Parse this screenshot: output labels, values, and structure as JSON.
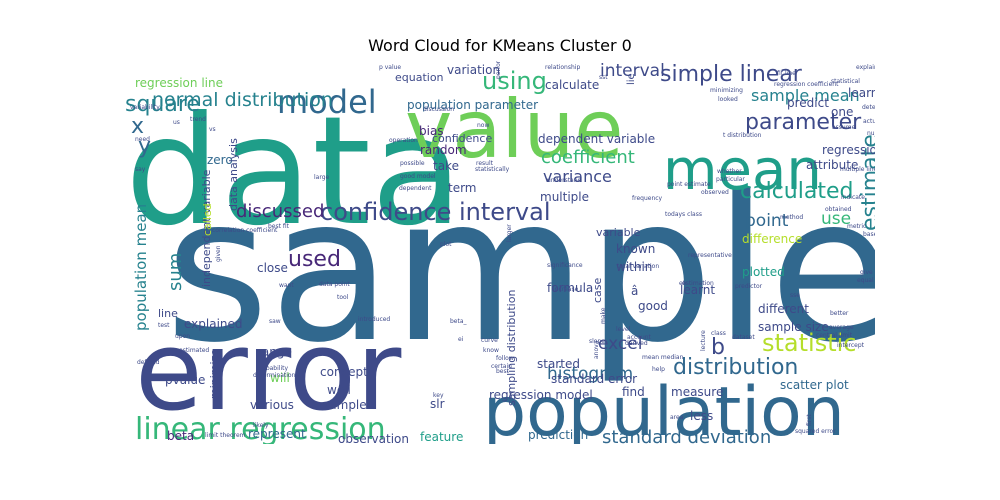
{
  "title": "Word Cloud for KMeans Cluster 0",
  "palette": [
    "#440154",
    "#482878",
    "#3e4a89",
    "#31688e",
    "#26828e",
    "#1f9e89",
    "#35b779",
    "#6ece58",
    "#b5de2b",
    "#fde725"
  ],
  "words": [
    {
      "text": "sample",
      "size": 10,
      "color": "#31688e"
    },
    {
      "text": "data",
      "size": 10,
      "color": "#1f9e89"
    },
    {
      "text": "value",
      "size": 9,
      "color": "#6ece58"
    },
    {
      "text": "error",
      "size": 9,
      "color": "#3e4a89"
    },
    {
      "text": "population",
      "size": 9,
      "color": "#31688e"
    },
    {
      "text": "mean",
      "size": 8,
      "color": "#1f9e89"
    },
    {
      "text": "confidence interval",
      "size": 6,
      "color": "#3e4a89"
    },
    {
      "text": "linear regression",
      "size": 6,
      "color": "#35b779"
    },
    {
      "text": "model",
      "size": 6,
      "color": "#31688e"
    },
    {
      "text": "simple linear",
      "size": 5,
      "color": "#3e4a89"
    },
    {
      "text": "parameter",
      "size": 5,
      "color": "#3e4a89"
    },
    {
      "text": "estimate",
      "size": 5,
      "color": "#26828e"
    },
    {
      "text": "statistic",
      "size": 5,
      "color": "#b5de2b"
    },
    {
      "text": "distribution",
      "size": 5,
      "color": "#31688e"
    },
    {
      "text": "calculated",
      "size": 5,
      "color": "#1f9e89"
    },
    {
      "text": "normal distribution",
      "size": 5,
      "color": "#26828e"
    },
    {
      "text": "square",
      "size": 5,
      "color": "#26828e"
    },
    {
      "text": "using",
      "size": 5,
      "color": "#35b779"
    },
    {
      "text": "used",
      "size": 5,
      "color": "#482878"
    },
    {
      "text": "coefficient",
      "size": 5,
      "color": "#35b779"
    },
    {
      "text": "standard deviation",
      "size": 5,
      "color": "#31688e"
    },
    {
      "text": "sample mean",
      "size": 4,
      "color": "#26828e"
    },
    {
      "text": "discussed",
      "size": 4,
      "color": "#482878"
    },
    {
      "text": "histogram",
      "size": 4,
      "color": "#31688e"
    },
    {
      "text": "variance",
      "size": 4,
      "color": "#3e4a89"
    },
    {
      "text": "excel",
      "size": 4,
      "color": "#3e4a89"
    },
    {
      "text": "sum",
      "size": 4,
      "color": "#26828e"
    },
    {
      "text": "interval",
      "size": 4,
      "color": "#3e4a89"
    },
    {
      "text": "population mean",
      "size": 4,
      "color": "#26828e"
    },
    {
      "text": "point",
      "size": 4,
      "color": "#31688e"
    },
    {
      "text": "use",
      "size": 4,
      "color": "#35b779"
    },
    {
      "text": "b",
      "size": 4,
      "color": "#3e4a89"
    },
    {
      "text": "x",
      "size": 5,
      "color": "#31688e"
    },
    {
      "text": "y",
      "size": 5,
      "color": "#31688e"
    },
    {
      "text": "population parameter",
      "size": 3,
      "color": "#31688e"
    },
    {
      "text": "regression line",
      "size": 3,
      "color": "#6ece58"
    },
    {
      "text": "bias",
      "size": 3,
      "color": "#482878"
    },
    {
      "text": "random",
      "size": 3,
      "color": "#482878"
    },
    {
      "text": "zero",
      "size": 3,
      "color": "#31688e"
    },
    {
      "text": "take",
      "size": 3,
      "color": "#3e4a89"
    },
    {
      "text": "term",
      "size": 3,
      "color": "#3e4a89"
    },
    {
      "text": "confidence",
      "size": 3,
      "color": "#3e4a89"
    },
    {
      "text": "equation",
      "size": 3,
      "color": "#3e4a89"
    },
    {
      "text": "variation",
      "size": 3,
      "color": "#3e4a89"
    },
    {
      "text": "calculate",
      "size": 3,
      "color": "#3e4a89"
    },
    {
      "text": "dependent variable",
      "size": 3,
      "color": "#3e4a89"
    },
    {
      "text": "multiple",
      "size": 3,
      "color": "#3e4a89"
    },
    {
      "text": "variable",
      "size": 3,
      "color": "#3e4a89"
    },
    {
      "text": "known",
      "size": 3,
      "color": "#3e4a89"
    },
    {
      "text": "within",
      "size": 3,
      "color": "#3e4a89"
    },
    {
      "text": "plotted",
      "size": 3,
      "color": "#1f9e89"
    },
    {
      "text": "difference",
      "size": 3,
      "color": "#b5de2b"
    },
    {
      "text": "different",
      "size": 3,
      "color": "#3e4a89"
    },
    {
      "text": "sample size",
      "size": 3,
      "color": "#3e4a89"
    },
    {
      "text": "good",
      "size": 3,
      "color": "#3e4a89"
    },
    {
      "text": "formula",
      "size": 3,
      "color": "#3e4a89"
    },
    {
      "text": "learnt",
      "size": 3,
      "color": "#3e4a89"
    },
    {
      "text": "case",
      "size": 3,
      "color": "#3e4a89"
    },
    {
      "text": "started",
      "size": 3,
      "color": "#3e4a89"
    },
    {
      "text": "standard error",
      "size": 3,
      "color": "#3e4a89"
    },
    {
      "text": "regression model",
      "size": 3,
      "color": "#3e4a89"
    },
    {
      "text": "find",
      "size": 3,
      "color": "#3e4a89"
    },
    {
      "text": "measure",
      "size": 3,
      "color": "#3e4a89"
    },
    {
      "text": "scatter plot",
      "size": 3,
      "color": "#31688e"
    },
    {
      "text": "less",
      "size": 3,
      "color": "#3e4a89"
    },
    {
      "text": "prediction",
      "size": 3,
      "color": "#31688e"
    },
    {
      "text": "feature",
      "size": 3,
      "color": "#1f9e89"
    },
    {
      "text": "observation",
      "size": 3,
      "color": "#3e4a89"
    },
    {
      "text": "represent",
      "size": 3,
      "color": "#31688e"
    },
    {
      "text": "beta",
      "size": 3,
      "color": "#482878"
    },
    {
      "text": "example",
      "size": 3,
      "color": "#3e4a89"
    },
    {
      "text": "various",
      "size": 3,
      "color": "#3e4a89"
    },
    {
      "text": "well",
      "size": 3,
      "color": "#3e4a89"
    },
    {
      "text": "will",
      "size": 3,
      "color": "#6ece58"
    },
    {
      "text": "concept",
      "size": 3,
      "color": "#3e4a89"
    },
    {
      "text": "slr",
      "size": 3,
      "color": "#3e4a89"
    },
    {
      "text": "pvalue",
      "size": 3,
      "color": "#3e4a89"
    },
    {
      "text": "range",
      "size": 3,
      "color": "#3e4a89"
    },
    {
      "text": "minimize",
      "size": 3,
      "color": "#3e4a89"
    },
    {
      "text": "line",
      "size": 3,
      "color": "#3e4a89"
    },
    {
      "text": "explained",
      "size": 3,
      "color": "#3e4a89"
    },
    {
      "text": "close",
      "size": 3,
      "color": "#3e4a89"
    },
    {
      "text": "independent variable",
      "size": 3,
      "color": "#3e4a89"
    },
    {
      "text": "data analysis",
      "size": 3,
      "color": "#3e4a89"
    },
    {
      "text": "called",
      "size": 3,
      "color": "#b5de2b"
    },
    {
      "text": "sampling distribution",
      "size": 3,
      "color": "#3e4a89"
    },
    {
      "text": "learned",
      "size": 3,
      "color": "#3e4a89"
    },
    {
      "text": "predict",
      "size": 3,
      "color": "#3e4a89"
    },
    {
      "text": "one",
      "size": 3,
      "color": "#3e4a89"
    },
    {
      "text": "regression",
      "size": 3,
      "color": "#3e4a89"
    },
    {
      "text": "attribute",
      "size": 3,
      "color": "#3e4a89"
    },
    {
      "text": "â",
      "size": 3,
      "color": "#3e4a89"
    },
    {
      "text": "lie",
      "size": 2,
      "color": "#3e4a89"
    },
    {
      "text": "p value",
      "size": 1,
      "color": "#3e4a89"
    },
    {
      "text": "relationship",
      "size": 1,
      "color": "#3e4a89"
    },
    {
      "text": "sst",
      "size": 1,
      "color": "#3e4a89"
    },
    {
      "text": "fit line",
      "size": 1,
      "color": "#3e4a89"
    },
    {
      "text": "explain",
      "size": 1,
      "color": "#3e4a89"
    },
    {
      "text": "regression coefficient",
      "size": 1,
      "color": "#3e4a89"
    },
    {
      "text": "statistical",
      "size": 1,
      "color": "#3e4a89"
    },
    {
      "text": "minimizing",
      "size": 1,
      "color": "#3e4a89"
    },
    {
      "text": "variability",
      "size": 1,
      "color": "#3e4a89"
    },
    {
      "text": "trend",
      "size": 1,
      "color": "#3e4a89"
    },
    {
      "text": "discussion",
      "size": 1,
      "color": "#3e4a89"
    },
    {
      "text": "now",
      "size": 1,
      "color": "#3e4a89"
    },
    {
      "text": "perform",
      "size": 1,
      "color": "#3e4a89"
    },
    {
      "text": "determine",
      "size": 1,
      "color": "#3e4a89"
    },
    {
      "text": "actual",
      "size": 1,
      "color": "#3e4a89"
    },
    {
      "text": "number",
      "size": 1,
      "color": "#3e4a89"
    },
    {
      "text": "assume",
      "size": 1,
      "color": "#3e4a89"
    },
    {
      "text": "t distribution",
      "size": 1,
      "color": "#3e4a89"
    },
    {
      "text": "operation",
      "size": 1,
      "color": "#3e4a89"
    },
    {
      "text": "possible",
      "size": 1,
      "color": "#3e4a89"
    },
    {
      "text": "good model",
      "size": 1,
      "color": "#3e4a89"
    },
    {
      "text": "dependent",
      "size": 1,
      "color": "#3e4a89"
    },
    {
      "text": "need",
      "size": 1,
      "color": "#3e4a89"
    },
    {
      "text": "say",
      "size": 1,
      "color": "#3e4a89"
    },
    {
      "text": "result",
      "size": 1,
      "color": "#3e4a89"
    },
    {
      "text": "statistically",
      "size": 1,
      "color": "#3e4a89"
    },
    {
      "text": "understand",
      "size": 1,
      "color": "#3e4a89"
    },
    {
      "text": "frequency",
      "size": 1,
      "color": "#3e4a89"
    },
    {
      "text": "point estimate",
      "size": 1,
      "color": "#3e4a89"
    },
    {
      "text": "observed",
      "size": 1,
      "color": "#3e4a89"
    },
    {
      "text": "todays class",
      "size": 1,
      "color": "#3e4a89"
    },
    {
      "text": "method",
      "size": 1,
      "color": "#3e4a89"
    },
    {
      "text": "indicate",
      "size": 1,
      "color": "#3e4a89"
    },
    {
      "text": "obtained",
      "size": 1,
      "color": "#3e4a89"
    },
    {
      "text": "metric",
      "size": 1,
      "color": "#3e4a89"
    },
    {
      "text": "based",
      "size": 1,
      "color": "#3e4a89"
    },
    {
      "text": "representative",
      "size": 1,
      "color": "#3e4a89"
    },
    {
      "text": "correlation coefficient",
      "size": 1,
      "color": "#3e4a89"
    },
    {
      "text": "best fit",
      "size": 1,
      "color": "#3e4a89"
    },
    {
      "text": "given",
      "size": 1,
      "color": "#3e4a89"
    },
    {
      "text": "want",
      "size": 1,
      "color": "#3e4a89"
    },
    {
      "text": "data point",
      "size": 1,
      "color": "#3e4a89"
    },
    {
      "text": "tool",
      "size": 1,
      "color": "#3e4a89"
    },
    {
      "text": "test",
      "size": 1,
      "color": "#3e4a89"
    },
    {
      "text": "saw",
      "size": 1,
      "color": "#3e4a89"
    },
    {
      "text": "introduced",
      "size": 1,
      "color": "#3e4a89"
    },
    {
      "text": "estimated",
      "size": 1,
      "color": "#3e4a89"
    },
    {
      "text": "defined",
      "size": 1,
      "color": "#3e4a89"
    },
    {
      "text": "probability",
      "size": 1,
      "color": "#3e4a89"
    },
    {
      "text": "determination",
      "size": 1,
      "color": "#3e4a89"
    },
    {
      "text": "likely",
      "size": 1,
      "color": "#3e4a89"
    },
    {
      "text": "limit theorem",
      "size": 1,
      "color": "#3e4a89"
    },
    {
      "text": "plot",
      "size": 1,
      "color": "#3e4a89"
    },
    {
      "text": "larger",
      "size": 1,
      "color": "#3e4a89"
    },
    {
      "text": "significance",
      "size": 1,
      "color": "#3e4a89"
    },
    {
      "text": "increase",
      "size": 1,
      "color": "#3e4a89"
    },
    {
      "text": "beta_",
      "size": 1,
      "color": "#3e4a89"
    },
    {
      "text": "curve",
      "size": 1,
      "color": "#3e4a89"
    },
    {
      "text": "follow",
      "size": 1,
      "color": "#3e4a89"
    },
    {
      "text": "key",
      "size": 1,
      "color": "#3e4a89"
    },
    {
      "text": "know",
      "size": 1,
      "color": "#3e4a89"
    },
    {
      "text": "certain",
      "size": 1,
      "color": "#3e4a89"
    },
    {
      "text": "best",
      "size": 1,
      "color": "#3e4a89"
    },
    {
      "text": "derived",
      "size": 1,
      "color": "#3e4a89"
    },
    {
      "text": "mean median",
      "size": 1,
      "color": "#3e4a89"
    },
    {
      "text": "help",
      "size": 1,
      "color": "#3e4a89"
    },
    {
      "text": "estimation",
      "size": 1,
      "color": "#3e4a89"
    },
    {
      "text": "total variation",
      "size": 1,
      "color": "#3e4a89"
    },
    {
      "text": "etc",
      "size": 1,
      "color": "#3e4a89"
    },
    {
      "text": "account",
      "size": 1,
      "color": "#3e4a89"
    },
    {
      "text": "slope",
      "size": 1,
      "color": "#3e4a89"
    },
    {
      "text": "make",
      "size": 1,
      "color": "#3e4a89"
    },
    {
      "text": "level",
      "size": 1,
      "color": "#3e4a89"
    },
    {
      "text": "lecture",
      "size": 1,
      "color": "#3e4a89"
    },
    {
      "text": "dataset",
      "size": 1,
      "color": "#3e4a89"
    },
    {
      "text": "predictor",
      "size": 1,
      "color": "#3e4a89"
    },
    {
      "text": "sse",
      "size": 1,
      "color": "#3e4a89"
    },
    {
      "text": "class",
      "size": 1,
      "color": "#3e4a89"
    },
    {
      "text": "better",
      "size": 1,
      "color": "#3e4a89"
    },
    {
      "text": "average",
      "size": 1,
      "color": "#3e4a89"
    },
    {
      "text": "equal",
      "size": 1,
      "color": "#3e4a89"
    },
    {
      "text": "give",
      "size": 1,
      "color": "#3e4a89"
    },
    {
      "text": "central limit",
      "size": 1,
      "color": "#3e4a89"
    },
    {
      "text": "intercept",
      "size": 1,
      "color": "#3e4a89"
    },
    {
      "text": "area",
      "size": 1,
      "color": "#3e4a89"
    },
    {
      "text": "first",
      "size": 1,
      "color": "#3e4a89"
    },
    {
      "text": "squared error",
      "size": 1,
      "color": "#3e4a89"
    },
    {
      "text": "anova",
      "size": 1,
      "color": "#3e4a89"
    },
    {
      "text": "upon",
      "size": 1,
      "color": "#3e4a89"
    },
    {
      "text": "vs",
      "size": 1,
      "color": "#3e4a89"
    },
    {
      "text": "us",
      "size": 1,
      "color": "#3e4a89"
    },
    {
      "text": "large",
      "size": 1,
      "color": "#3e4a89"
    },
    {
      "text": "whether",
      "size": 1,
      "color": "#3e4a89"
    },
    {
      "text": "particular",
      "size": 1,
      "color": "#3e4a89"
    },
    {
      "text": "looked",
      "size": 1,
      "color": "#3e4a89"
    },
    {
      "text": "multiple linear",
      "size": 1,
      "color": "#3e4a89"
    },
    {
      "text": "ei",
      "size": 1,
      "color": "#3e4a89"
    }
  ]
}
